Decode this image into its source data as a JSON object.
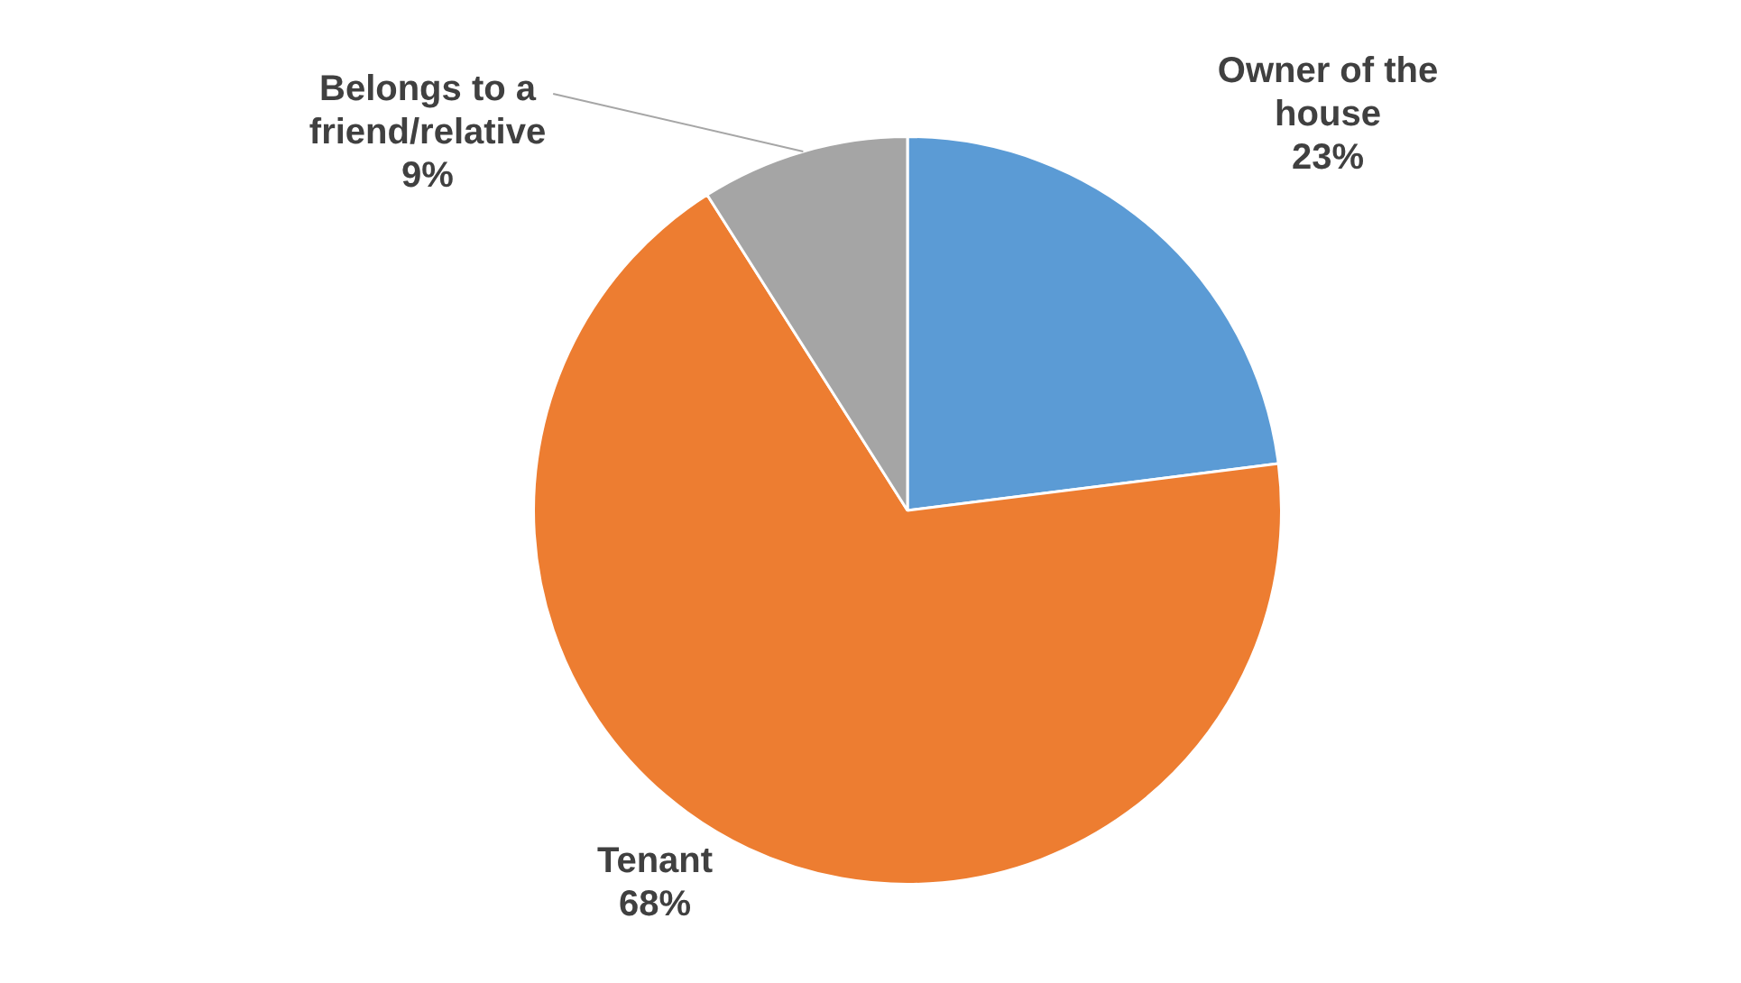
{
  "chart_data": {
    "type": "pie",
    "categories": [
      "Owner of the house",
      "Tenant",
      "Belongs to a friend/relative"
    ],
    "values": [
      23,
      68,
      9
    ],
    "colors": [
      "#5b9bd5",
      "#ed7d31",
      "#a5a5a5"
    ],
    "value_labels": [
      "23%",
      "68%",
      "9%"
    ],
    "legend": false
  }
}
